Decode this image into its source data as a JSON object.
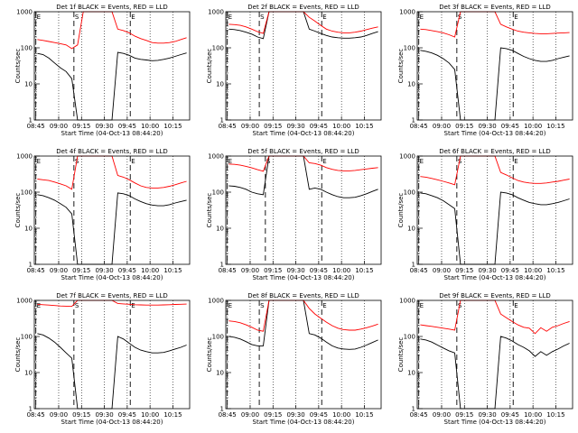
{
  "chart_data": [
    {
      "type": "line",
      "title": "Det 1f BLACK = Events, RED = LLD",
      "xlabel": "Start Time (04-Oct-13 08:44:20)",
      "ylabel": "Counts/sec",
      "yscale": "log",
      "ylim": [
        1,
        1000
      ],
      "x_ticks": [
        "08:45",
        "09:00",
        "09:15",
        "09:30",
        "09:45",
        "10:00",
        "10:15"
      ],
      "y_ticks": [
        "1",
        "10",
        "100",
        "1000"
      ],
      "markers": [
        {
          "label": "E",
          "time": "08:45"
        },
        {
          "label": "S",
          "time": "09:10"
        },
        {
          "label": "E",
          "time": "09:47"
        }
      ],
      "series": [
        {
          "color": "#000000",
          "values": [
            70,
            65,
            52,
            38,
            28,
            22,
            14,
            0,
            0,
            0,
            0,
            0,
            0,
            0,
            75,
            70,
            62,
            52,
            48,
            46,
            44,
            45,
            48,
            52,
            58,
            65,
            72
          ]
        },
        {
          "color": "#ff0000",
          "values": [
            170,
            160,
            150,
            140,
            130,
            120,
            95,
            120,
            1000,
            1000,
            1000,
            1000,
            1000,
            1000,
            330,
            300,
            260,
            210,
            180,
            160,
            140,
            135,
            135,
            140,
            150,
            170,
            190
          ]
        }
      ]
    },
    {
      "type": "line",
      "title": "Det 2f BLACK = Events, RED = LLD",
      "xlabel": "Start Time (04-Oct-13 08:44:20)",
      "ylabel": "Counts/sec",
      "yscale": "log",
      "ylim": [
        1,
        1000
      ],
      "x_ticks": [
        "08:45",
        "09:00",
        "09:15",
        "09:30",
        "09:45",
        "10:00",
        "10:15"
      ],
      "y_ticks": [
        "1",
        "10",
        "100",
        "1000"
      ],
      "markers": [
        {
          "label": "E",
          "time": "08:45"
        },
        {
          "label": "S",
          "time": "09:06"
        },
        {
          "label": "E",
          "time": "09:47"
        }
      ],
      "series": [
        {
          "color": "#000000",
          "values": [
            330,
            320,
            300,
            270,
            240,
            200,
            180,
            1000,
            1000,
            1000,
            1000,
            1000,
            1000,
            1000,
            330,
            290,
            250,
            220,
            200,
            190,
            185,
            185,
            190,
            200,
            220,
            250,
            280
          ]
        },
        {
          "color": "#ff0000",
          "values": [
            450,
            440,
            420,
            380,
            330,
            280,
            250,
            1000,
            1000,
            1000,
            1000,
            1000,
            1000,
            1000,
            700,
            550,
            420,
            330,
            290,
            270,
            260,
            260,
            270,
            290,
            320,
            350,
            380
          ]
        }
      ]
    },
    {
      "type": "line",
      "title": "Det 3f BLACK = Events, RED = LLD",
      "xlabel": "Start Time (04-Oct-13 08:44:20)",
      "ylabel": "Counts/sec",
      "yscale": "log",
      "ylim": [
        1,
        1000
      ],
      "x_ticks": [
        "08:45",
        "09:00",
        "09:15",
        "09:30",
        "09:45",
        "10:00",
        "10:15"
      ],
      "y_ticks": [
        "1",
        "10",
        "100",
        "1000"
      ],
      "markers": [
        {
          "label": "E",
          "time": "08:45"
        },
        {
          "label": "S",
          "time": "09:10"
        },
        {
          "label": "E",
          "time": "09:47"
        }
      ],
      "series": [
        {
          "color": "#000000",
          "values": [
            85,
            80,
            72,
            62,
            50,
            38,
            25,
            0,
            0,
            0,
            0,
            0,
            0,
            0,
            100,
            95,
            85,
            70,
            58,
            50,
            45,
            42,
            42,
            45,
            50,
            55,
            60
          ]
        },
        {
          "color": "#ff0000",
          "values": [
            330,
            320,
            300,
            280,
            260,
            230,
            200,
            1000,
            1000,
            1000,
            1000,
            1000,
            1000,
            1000,
            450,
            380,
            330,
            290,
            270,
            260,
            250,
            245,
            245,
            250,
            255,
            260,
            265
          ]
        }
      ]
    },
    {
      "type": "line",
      "title": "Det 4f BLACK = Events, RED = LLD",
      "xlabel": "Start Time (04-Oct-13 08:44:20)",
      "ylabel": "Counts/sec",
      "yscale": "log",
      "ylim": [
        1,
        1000
      ],
      "x_ticks": [
        "08:45",
        "09:00",
        "09:15",
        "09:30",
        "09:45",
        "10:00",
        "10:15"
      ],
      "y_ticks": [
        "1",
        "10",
        "100",
        "1000"
      ],
      "markers": [
        {
          "label": "E",
          "time": "08:45"
        },
        {
          "label": "S",
          "time": "09:10"
        },
        {
          "label": "E",
          "time": "09:47"
        }
      ],
      "series": [
        {
          "color": "#000000",
          "values": [
            85,
            80,
            70,
            60,
            48,
            38,
            25,
            0,
            0,
            0,
            0,
            0,
            0,
            0,
            95,
            90,
            80,
            65,
            55,
            48,
            44,
            42,
            42,
            45,
            50,
            55,
            60
          ]
        },
        {
          "color": "#ff0000",
          "values": [
            230,
            220,
            210,
            190,
            170,
            150,
            120,
            1000,
            1000,
            1000,
            1000,
            1000,
            1000,
            1000,
            290,
            260,
            220,
            180,
            150,
            135,
            130,
            130,
            135,
            145,
            160,
            180,
            200
          ]
        }
      ]
    },
    {
      "type": "line",
      "title": "Det 5f BLACK = Events, RED = LLD",
      "xlabel": "Start Time (04-Oct-13 08:44:20)",
      "ylabel": "Counts/sec",
      "yscale": "log",
      "ylim": [
        1,
        1000
      ],
      "x_ticks": [
        "08:45",
        "09:00",
        "09:15",
        "09:30",
        "09:45",
        "10:00",
        "10:15"
      ],
      "y_ticks": [
        "1",
        "10",
        "100",
        "1000"
      ],
      "markers": [
        {
          "label": "E",
          "time": "08:45"
        },
        {
          "label": "S",
          "time": "09:10"
        },
        {
          "label": "E",
          "time": "09:47"
        }
      ],
      "series": [
        {
          "color": "#000000",
          "values": [
            150,
            145,
            135,
            120,
            100,
            90,
            85,
            1000,
            1000,
            1000,
            1000,
            1000,
            1000,
            1000,
            120,
            130,
            120,
            100,
            85,
            75,
            70,
            70,
            72,
            80,
            90,
            105,
            120
          ]
        },
        {
          "color": "#ff0000",
          "values": [
            600,
            590,
            560,
            520,
            470,
            420,
            380,
            1000,
            1000,
            1000,
            1000,
            1000,
            1000,
            1000,
            650,
            620,
            560,
            480,
            430,
            400,
            390,
            390,
            400,
            420,
            440,
            460,
            480
          ]
        }
      ]
    },
    {
      "type": "line",
      "title": "Det 6f BLACK = Events, RED = LLD",
      "xlabel": "Start Time (04-Oct-13 08:44:20)",
      "ylabel": "Counts/sec",
      "yscale": "log",
      "ylim": [
        1,
        1000
      ],
      "x_ticks": [
        "08:45",
        "09:00",
        "09:15",
        "09:30",
        "09:45",
        "10:00",
        "10:15"
      ],
      "y_ticks": [
        "1",
        "10",
        "100",
        "1000"
      ],
      "markers": [
        {
          "label": "E",
          "time": "08:45"
        },
        {
          "label": "S",
          "time": "09:10"
        },
        {
          "label": "E",
          "time": "09:47"
        }
      ],
      "series": [
        {
          "color": "#000000",
          "values": [
            95,
            90,
            80,
            70,
            58,
            45,
            35,
            0,
            0,
            0,
            0,
            0,
            0,
            0,
            100,
            95,
            85,
            70,
            60,
            52,
            48,
            45,
            45,
            48,
            52,
            58,
            65
          ]
        },
        {
          "color": "#ff0000",
          "values": [
            270,
            260,
            240,
            220,
            200,
            180,
            160,
            1000,
            1000,
            1000,
            1000,
            1000,
            1000,
            1000,
            350,
            300,
            250,
            210,
            190,
            180,
            175,
            175,
            180,
            190,
            200,
            215,
            230
          ]
        }
      ]
    },
    {
      "type": "line",
      "title": "Det 7f BLACK = Events, RED = LLD",
      "xlabel": "Start Time (04-Oct-13 08:44:20)",
      "ylabel": "Counts/sec",
      "yscale": "log",
      "ylim": [
        1,
        1000
      ],
      "x_ticks": [
        "08:45",
        "09:00",
        "09:15",
        "09:30",
        "09:45",
        "10:00",
        "10:15"
      ],
      "y_ticks": [
        "1",
        "10",
        "100",
        "1000"
      ],
      "markers": [
        {
          "label": "E",
          "time": "08:45"
        },
        {
          "label": "S",
          "time": "09:10"
        },
        {
          "label": "E",
          "time": "09:47"
        }
      ],
      "series": [
        {
          "color": "#000000",
          "values": [
            120,
            110,
            90,
            70,
            50,
            35,
            25,
            0,
            0,
            0,
            0,
            0,
            0,
            0,
            100,
            85,
            65,
            50,
            42,
            38,
            35,
            35,
            36,
            40,
            45,
            50,
            58
          ]
        },
        {
          "color": "#ff0000",
          "values": [
            780,
            760,
            740,
            720,
            700,
            690,
            680,
            1000,
            1000,
            1000,
            1000,
            1000,
            1000,
            1000,
            820,
            800,
            780,
            760,
            750,
            740,
            740,
            740,
            750,
            760,
            770,
            780,
            790
          ]
        }
      ]
    },
    {
      "type": "line",
      "title": "Det 8f BLACK = Events, RED = LLD",
      "xlabel": "Start Time (04-Oct-13 08:44:20)",
      "ylabel": "Counts/sec",
      "yscale": "log",
      "ylim": [
        1,
        1000
      ],
      "x_ticks": [
        "08:45",
        "09:00",
        "09:15",
        "09:30",
        "09:45",
        "10:00",
        "10:15"
      ],
      "y_ticks": [
        "1",
        "10",
        "100",
        "1000"
      ],
      "markers": [
        {
          "label": "E",
          "time": "08:45"
        },
        {
          "label": "S",
          "time": "09:06"
        },
        {
          "label": "E",
          "time": "09:47"
        }
      ],
      "series": [
        {
          "color": "#000000",
          "values": [
            100,
            95,
            85,
            72,
            60,
            55,
            55,
            1000,
            1000,
            1000,
            1000,
            1000,
            1000,
            1000,
            120,
            110,
            90,
            70,
            55,
            48,
            45,
            44,
            45,
            50,
            58,
            68,
            80
          ]
        },
        {
          "color": "#ff0000",
          "values": [
            270,
            260,
            240,
            210,
            180,
            150,
            140,
            1000,
            1000,
            1000,
            1000,
            1000,
            1000,
            1000,
            600,
            420,
            320,
            250,
            200,
            170,
            155,
            150,
            150,
            160,
            175,
            195,
            220
          ]
        }
      ]
    },
    {
      "type": "line",
      "title": "Det 9f BLACK = Events, RED = LLD",
      "xlabel": "Start Time (04-Oct-13 08:44:20)",
      "ylabel": "Counts/sec",
      "yscale": "log",
      "ylim": [
        1,
        1000
      ],
      "x_ticks": [
        "08:45",
        "09:00",
        "09:15",
        "09:30",
        "09:45",
        "10:00",
        "10:15"
      ],
      "y_ticks": [
        "1",
        "10",
        "100",
        "1000"
      ],
      "markers": [
        {
          "label": "E",
          "time": "08:45"
        },
        {
          "label": "S",
          "time": "09:10"
        },
        {
          "label": "E",
          "time": "09:47"
        }
      ],
      "series": [
        {
          "color": "#000000",
          "values": [
            85,
            80,
            70,
            58,
            48,
            40,
            35,
            0,
            0,
            0,
            0,
            0,
            0,
            0,
            100,
            90,
            75,
            60,
            50,
            40,
            28,
            38,
            30,
            38,
            45,
            55,
            65
          ]
        },
        {
          "color": "#ff0000",
          "values": [
            210,
            200,
            190,
            180,
            170,
            160,
            150,
            1000,
            1000,
            1000,
            1000,
            1000,
            1000,
            1000,
            420,
            330,
            260,
            210,
            180,
            170,
            120,
            175,
            140,
            180,
            200,
            230,
            260
          ]
        }
      ]
    }
  ]
}
